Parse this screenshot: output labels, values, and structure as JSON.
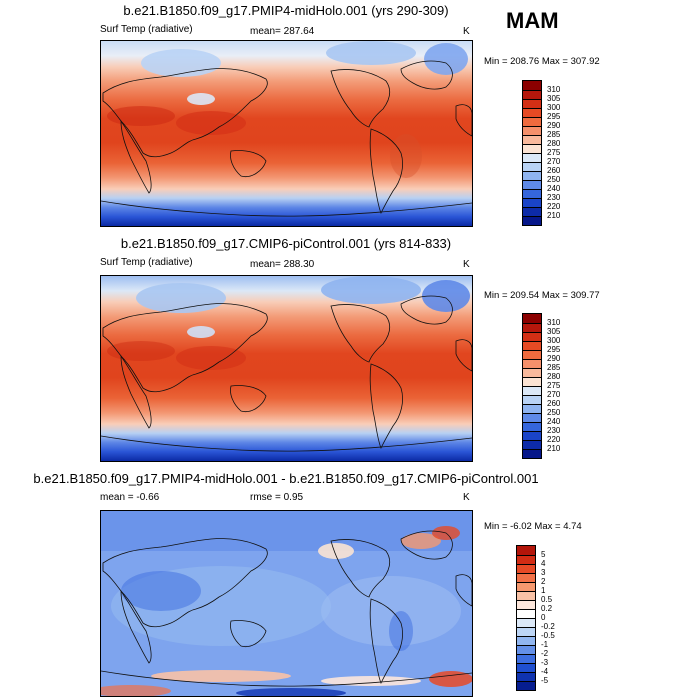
{
  "season": "MAM",
  "panels": [
    {
      "title": "b.e21.B1850.f09_g17.PMIP4-midHolo.001 (yrs 290-309)",
      "left_label": "Surf Temp (radiative)",
      "center_label": "mean= 287.64",
      "units": "K",
      "minmax": "Min = 208.76 Max = 307.92",
      "colorbar": {
        "labels": [
          "310",
          "305",
          "300",
          "295",
          "290",
          "285",
          "280",
          "275",
          "270",
          "260",
          "250",
          "240",
          "230",
          "220",
          "210"
        ],
        "colors": [
          "#8b0000",
          "#b5170c",
          "#d32f15",
          "#e64a24",
          "#ef6b3f",
          "#f5906b",
          "#f9b99c",
          "#fbe3d3",
          "#dbe8f7",
          "#b9d3f5",
          "#8fb4f0",
          "#5f8ae8",
          "#3566dc",
          "#1a44c8",
          "#0d2ba8",
          "#06178a"
        ]
      }
    },
    {
      "title": "b.e21.B1850.f09_g17.CMIP6-piControl.001 (yrs 814-833)",
      "left_label": "Surf Temp (radiative)",
      "center_label": "mean= 288.30",
      "units": "K",
      "minmax": "Min = 209.54 Max = 309.77",
      "colorbar": {
        "labels": [
          "310",
          "305",
          "300",
          "295",
          "290",
          "285",
          "280",
          "275",
          "270",
          "260",
          "250",
          "240",
          "230",
          "220",
          "210"
        ],
        "colors": [
          "#8b0000",
          "#b5170c",
          "#d32f15",
          "#e64a24",
          "#ef6b3f",
          "#f5906b",
          "#f9b99c",
          "#fbe3d3",
          "#dbe8f7",
          "#b9d3f5",
          "#8fb4f0",
          "#5f8ae8",
          "#3566dc",
          "#1a44c8",
          "#0d2ba8",
          "#06178a"
        ]
      }
    },
    {
      "title": "b.e21.B1850.f09_g17.PMIP4-midHolo.001 - b.e21.B1850.f09_g17.CMIP6-piControl.001",
      "left_label": "mean =  -0.66",
      "center_label": "rmse =   0.95",
      "units": "K",
      "minmax": "Min =  -6.02 Max =   4.74",
      "colorbar": {
        "labels": [
          "5",
          "4",
          "3",
          "2",
          "1",
          "0.5",
          "0.2",
          "0",
          "-0.2",
          "-0.5",
          "-1",
          "-2",
          "-3",
          "-4",
          "-5"
        ],
        "colors": [
          "#b3150a",
          "#d22c14",
          "#e74a26",
          "#f27147",
          "#f6996f",
          "#f9c2a6",
          "#fde7dc",
          "#ffffff",
          "#dce9f8",
          "#bcd5f5",
          "#91b6f0",
          "#6490e8",
          "#3d6ee0",
          "#1f4fd0",
          "#0f33b0",
          "#061d90"
        ]
      }
    }
  ]
}
